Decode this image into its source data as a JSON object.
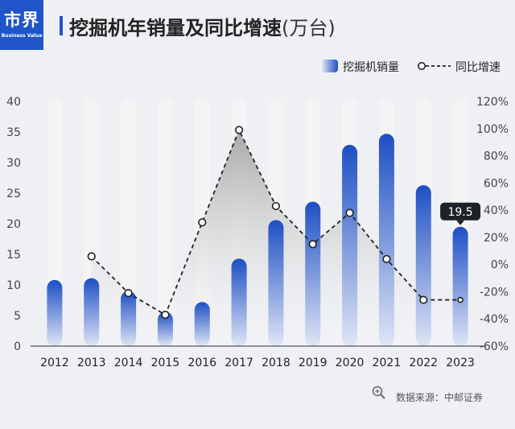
{
  "header": {
    "logo_text": "市界",
    "logo_sub": "Business Value",
    "title": "挖掘机年销量及同比增速",
    "title_unit": "(万台)"
  },
  "source": "数据来源：中邮证券",
  "colors": {
    "brand": "#1f55c9",
    "bar_top": "#1d4fc4",
    "bar_bottom": "#dfe5f5",
    "track": "#f4f4f4",
    "line": "#222222",
    "area": "#b6b6b6",
    "background": "#eef0f4"
  },
  "chart_data": {
    "type": "bar",
    "categories": [
      "2012",
      "2013",
      "2014",
      "2015",
      "2016",
      "2017",
      "2018",
      "2019",
      "2020",
      "2021",
      "2022",
      "2023"
    ],
    "series": [
      {
        "name": "挖掘机销量",
        "axis": "left",
        "values": [
          10.8,
          11.1,
          9.0,
          5.6,
          7.2,
          14.3,
          20.6,
          23.6,
          32.9,
          34.7,
          26.3,
          19.5
        ]
      },
      {
        "name": "同比增速",
        "axis": "right",
        "chart_type": "line",
        "values": [
          null,
          6,
          -21,
          -37,
          31,
          99,
          43,
          15,
          38,
          4,
          -26,
          -26
        ]
      }
    ],
    "y_left": {
      "min": 0,
      "max": 40,
      "ticks": [
        "0",
        "5",
        "10",
        "15",
        "20",
        "25",
        "30",
        "35",
        "40"
      ]
    },
    "y_right": {
      "min": -60,
      "max": 120,
      "ticks": [
        "-60%",
        "-40%",
        "-20%",
        "0%",
        "20%",
        "40%",
        "60%",
        "80%",
        "100%",
        "120%"
      ]
    },
    "data_labels": [
      {
        "category": "2023",
        "text": "19.5"
      }
    ],
    "legend_position": "top-right",
    "grid": false
  }
}
